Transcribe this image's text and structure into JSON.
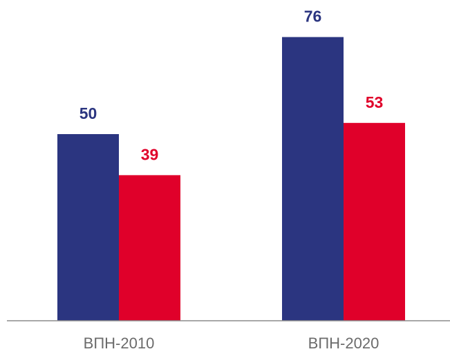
{
  "chart_data": {
    "type": "bar",
    "categories": [
      "ВПН-2010",
      "ВПН-2020"
    ],
    "series": [
      {
        "color": "#2b3580",
        "values": [
          50,
          76
        ]
      },
      {
        "color": "#e0002a",
        "values": [
          39,
          53
        ]
      }
    ],
    "ylim": [
      0,
      80
    ]
  }
}
